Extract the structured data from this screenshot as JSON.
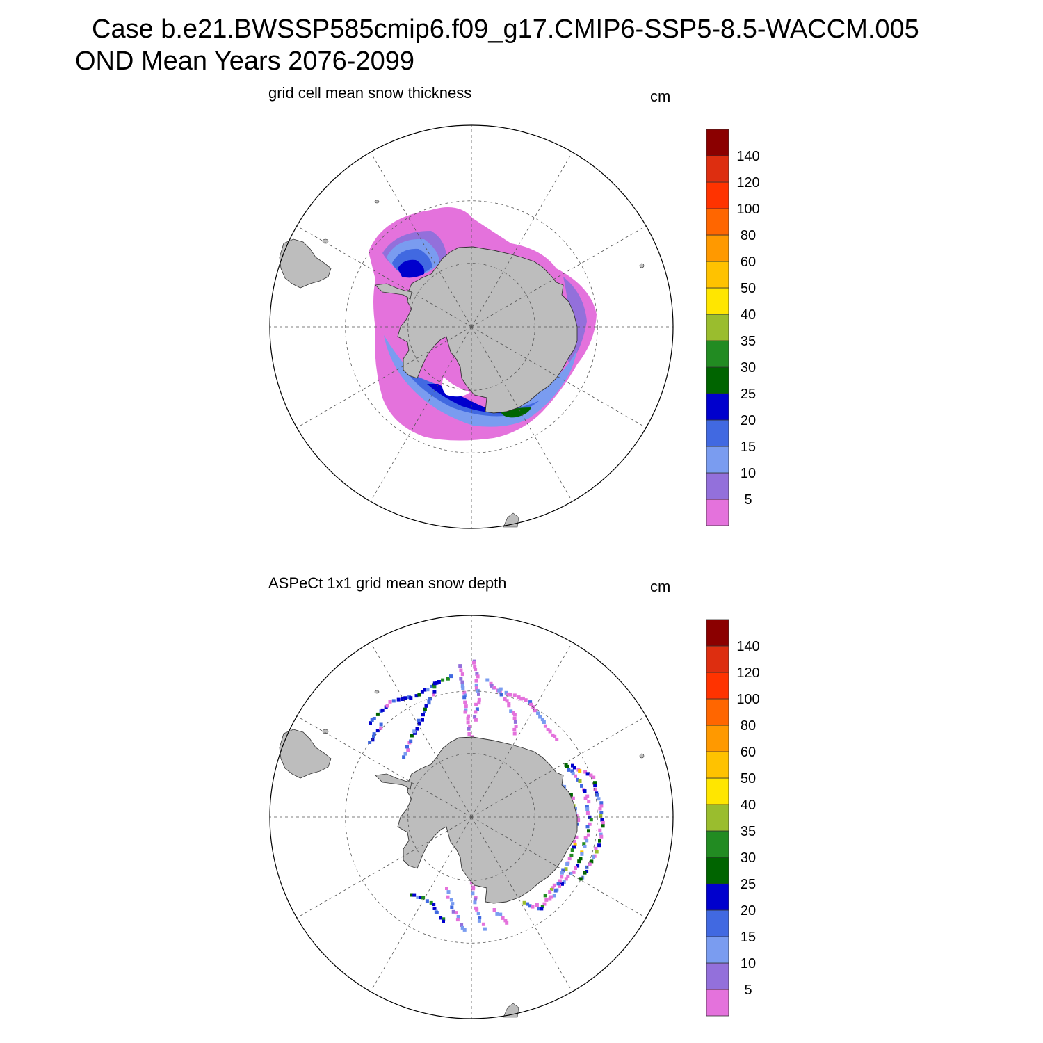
{
  "title": {
    "line1": "Case b.e21.BWSSP585cmip6.f09_g17.CMIP6-SSP5-8.5-WACCM.005",
    "line2": "OND Mean   Years 2076-2099"
  },
  "colors": {
    "levels": [
      "#e472dc",
      "#9370db",
      "#7a9cf0",
      "#4169e1",
      "#0000cd",
      "#006400",
      "#228b22",
      "#9abd2e",
      "#ffe600",
      "#ffc200",
      "#ff9900",
      "#ff6600",
      "#ff3300",
      "#dd2e10",
      "#8b0000"
    ],
    "land": "#bdbdbd",
    "grid": "#555555"
  },
  "colorbar": {
    "tick_labels": [
      "5",
      "10",
      "15",
      "20",
      "25",
      "30",
      "35",
      "40",
      "50",
      "60",
      "80",
      "100",
      "120",
      "140"
    ]
  },
  "panels": [
    {
      "title": "grid cell mean snow thickness",
      "units": "cm",
      "map_type": "model"
    },
    {
      "title": "ASPeCt 1x1 grid mean snow depth",
      "units": "cm",
      "map_type": "observations"
    }
  ]
}
